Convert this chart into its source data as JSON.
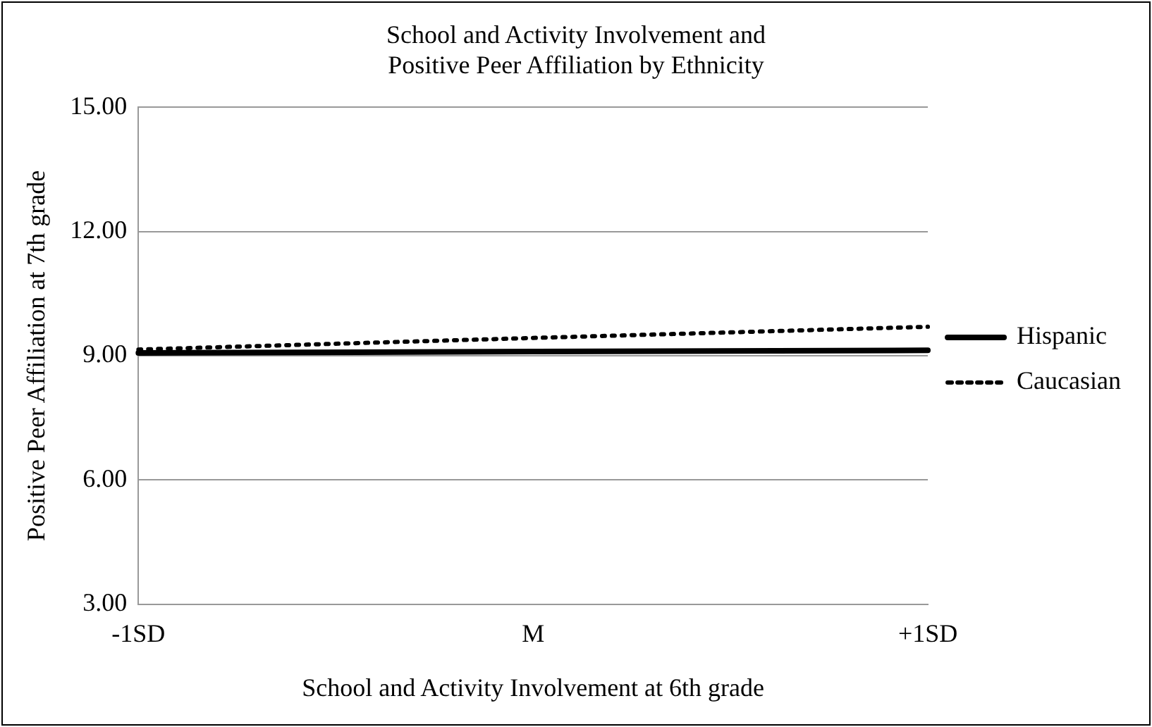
{
  "chart_data": {
    "type": "line",
    "title": "School and Activity Involvement and\nPositive Peer Affiliation by Ethnicity",
    "xlabel": "School and Activity Involvement at 6th grade",
    "ylabel": "Positive Peer Affiliation at 7th grade",
    "categories": [
      "-1SD",
      "M",
      "+1SD"
    ],
    "series": [
      {
        "name": "Hispanic",
        "color": "#000000",
        "values": [
          9.07,
          9.1,
          9.13
        ],
        "line_style": "solid"
      },
      {
        "name": "Caucasian",
        "color": "#000000",
        "values": [
          9.15,
          9.43,
          9.7
        ],
        "line_style": "dotted"
      }
    ],
    "ylim": [
      3,
      15
    ],
    "yticks": [
      {
        "value": 3,
        "label": "3.00"
      },
      {
        "value": 6,
        "label": "6.00"
      },
      {
        "value": 9,
        "label": "9.00"
      },
      {
        "value": 12,
        "label": "12.00"
      },
      {
        "value": 15,
        "label": "15.00"
      }
    ],
    "grid": "y",
    "legend": "right",
    "marker": "none"
  }
}
